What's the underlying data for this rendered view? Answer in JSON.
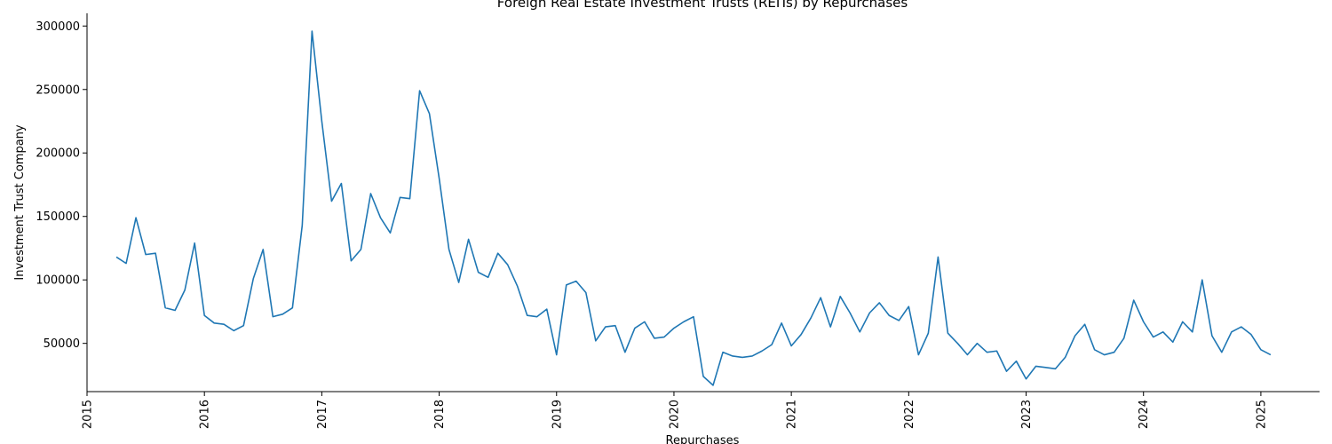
{
  "chart_data": {
    "type": "line",
    "title": "Foreign Real Estate Investment Trusts (REITs) by Repurchases",
    "xlabel": "Repurchases",
    "ylabel": "Investment Trust Company",
    "xlim": [
      "2015-01-01",
      "2025-07-01"
    ],
    "ylim": [
      12000,
      310000
    ],
    "x_ticks": [
      "2015",
      "2016",
      "2017",
      "2018",
      "2019",
      "2020",
      "2021",
      "2022",
      "2023",
      "2024",
      "2025"
    ],
    "y_ticks": [
      50000,
      100000,
      150000,
      200000,
      250000,
      300000
    ],
    "y_tick_labels": [
      "50000",
      "100000",
      "150000",
      "200000",
      "250000",
      "300000"
    ],
    "grid": false,
    "series": [
      {
        "color": "#1f77b4",
        "points": [
          [
            "2015-04-01",
            118000
          ],
          [
            "2015-05-01",
            113000
          ],
          [
            "2015-06-01",
            149000
          ],
          [
            "2015-07-01",
            120000
          ],
          [
            "2015-08-01",
            121000
          ],
          [
            "2015-09-01",
            78000
          ],
          [
            "2015-10-01",
            76000
          ],
          [
            "2015-11-01",
            92000
          ],
          [
            "2015-12-01",
            129000
          ],
          [
            "2016-01-01",
            72000
          ],
          [
            "2016-02-01",
            66000
          ],
          [
            "2016-03-01",
            65000
          ],
          [
            "2016-04-01",
            60000
          ],
          [
            "2016-05-01",
            64000
          ],
          [
            "2016-06-01",
            101000
          ],
          [
            "2016-07-01",
            124000
          ],
          [
            "2016-08-01",
            71000
          ],
          [
            "2016-09-01",
            73000
          ],
          [
            "2016-10-01",
            78000
          ],
          [
            "2016-11-01",
            143000
          ],
          [
            "2016-12-01",
            296000
          ],
          [
            "2017-01-01",
            225000
          ],
          [
            "2017-02-01",
            162000
          ],
          [
            "2017-03-01",
            176000
          ],
          [
            "2017-04-01",
            115000
          ],
          [
            "2017-05-01",
            124000
          ],
          [
            "2017-06-01",
            168000
          ],
          [
            "2017-07-01",
            149000
          ],
          [
            "2017-08-01",
            137000
          ],
          [
            "2017-09-01",
            165000
          ],
          [
            "2017-10-01",
            164000
          ],
          [
            "2017-11-01",
            249000
          ],
          [
            "2017-12-01",
            231000
          ],
          [
            "2018-01-01",
            180000
          ],
          [
            "2018-02-01",
            124000
          ],
          [
            "2018-03-01",
            98000
          ],
          [
            "2018-04-01",
            132000
          ],
          [
            "2018-05-01",
            106000
          ],
          [
            "2018-06-01",
            102000
          ],
          [
            "2018-07-01",
            121000
          ],
          [
            "2018-08-01",
            112000
          ],
          [
            "2018-09-01",
            95000
          ],
          [
            "2018-10-01",
            72000
          ],
          [
            "2018-11-01",
            71000
          ],
          [
            "2018-12-01",
            77000
          ],
          [
            "2019-01-01",
            41000
          ],
          [
            "2019-02-01",
            96000
          ],
          [
            "2019-03-01",
            99000
          ],
          [
            "2019-04-01",
            90000
          ],
          [
            "2019-05-01",
            52000
          ],
          [
            "2019-06-01",
            63000
          ],
          [
            "2019-07-01",
            64000
          ],
          [
            "2019-08-01",
            43000
          ],
          [
            "2019-09-01",
            62000
          ],
          [
            "2019-10-01",
            67000
          ],
          [
            "2019-11-01",
            54000
          ],
          [
            "2019-12-01",
            55000
          ],
          [
            "2020-01-01",
            62000
          ],
          [
            "2020-02-01",
            67000
          ],
          [
            "2020-03-01",
            71000
          ],
          [
            "2020-04-01",
            24000
          ],
          [
            "2020-05-01",
            17000
          ],
          [
            "2020-06-01",
            43000
          ],
          [
            "2020-07-01",
            40000
          ],
          [
            "2020-08-01",
            39000
          ],
          [
            "2020-09-01",
            40000
          ],
          [
            "2020-10-01",
            44000
          ],
          [
            "2020-11-01",
            49000
          ],
          [
            "2020-12-01",
            66000
          ],
          [
            "2021-01-01",
            48000
          ],
          [
            "2021-02-01",
            57000
          ],
          [
            "2021-03-01",
            70000
          ],
          [
            "2021-04-01",
            86000
          ],
          [
            "2021-05-01",
            63000
          ],
          [
            "2021-06-01",
            87000
          ],
          [
            "2021-07-01",
            74000
          ],
          [
            "2021-08-01",
            59000
          ],
          [
            "2021-09-01",
            74000
          ],
          [
            "2021-10-01",
            82000
          ],
          [
            "2021-11-01",
            72000
          ],
          [
            "2021-12-01",
            68000
          ],
          [
            "2022-01-01",
            79000
          ],
          [
            "2022-02-01",
            41000
          ],
          [
            "2022-03-01",
            58000
          ],
          [
            "2022-04-01",
            118000
          ],
          [
            "2022-05-01",
            58000
          ],
          [
            "2022-06-01",
            50000
          ],
          [
            "2022-07-01",
            41000
          ],
          [
            "2022-08-01",
            50000
          ],
          [
            "2022-09-01",
            43000
          ],
          [
            "2022-10-01",
            44000
          ],
          [
            "2022-11-01",
            28000
          ],
          [
            "2022-12-01",
            36000
          ],
          [
            "2023-01-01",
            22000
          ],
          [
            "2023-02-01",
            32000
          ],
          [
            "2023-03-01",
            31000
          ],
          [
            "2023-04-01",
            30000
          ],
          [
            "2023-05-01",
            39000
          ],
          [
            "2023-06-01",
            56000
          ],
          [
            "2023-07-01",
            65000
          ],
          [
            "2023-08-01",
            45000
          ],
          [
            "2023-09-01",
            41000
          ],
          [
            "2023-10-01",
            43000
          ],
          [
            "2023-11-01",
            54000
          ],
          [
            "2023-12-01",
            84000
          ],
          [
            "2024-01-01",
            67000
          ],
          [
            "2024-02-01",
            55000
          ],
          [
            "2024-03-01",
            59000
          ],
          [
            "2024-04-01",
            51000
          ],
          [
            "2024-05-01",
            67000
          ],
          [
            "2024-06-01",
            59000
          ],
          [
            "2024-07-01",
            100000
          ],
          [
            "2024-08-01",
            56000
          ],
          [
            "2024-09-01",
            43000
          ],
          [
            "2024-10-01",
            59000
          ],
          [
            "2024-11-01",
            63000
          ],
          [
            "2024-12-01",
            57000
          ],
          [
            "2025-01-01",
            45000
          ],
          [
            "2025-02-01",
            41000
          ]
        ]
      }
    ]
  }
}
